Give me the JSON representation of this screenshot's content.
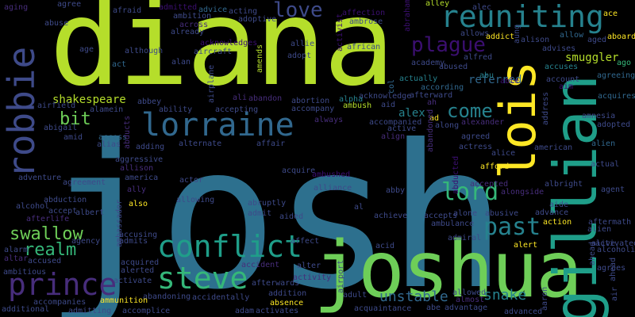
{
  "palette": [
    "#3b0f70",
    "#472d7b",
    "#3e4a89",
    "#31688e",
    "#26828e",
    "#1f9e89",
    "#35b779",
    "#6ece58",
    "#b5de2b",
    "#fde725"
  ],
  "words": [
    {
      "text": "josh",
      "color": "#2d708e"
    },
    {
      "text": "diana",
      "color": "#b5de2b"
    },
    {
      "text": "joshua",
      "color": "#6ece58"
    },
    {
      "text": "gillian",
      "color": "#1f9e89"
    },
    {
      "text": "lois",
      "color": "#fde725"
    },
    {
      "text": "reuniting",
      "color": "#26828e"
    },
    {
      "text": "robbie",
      "color": "#3e4a89"
    },
    {
      "text": "lorraine",
      "color": "#31688e"
    },
    {
      "text": "conflict",
      "color": "#1f9e89"
    },
    {
      "text": "steve",
      "color": "#35b779"
    },
    {
      "text": "prince",
      "color": "#472d7b"
    },
    {
      "text": "love",
      "color": "#3e4a89"
    },
    {
      "text": "plague",
      "color": "#3b0f70"
    },
    {
      "text": "lord",
      "color": "#35b779"
    },
    {
      "text": "past",
      "color": "#26828e"
    },
    {
      "text": "come",
      "color": "#26828e"
    },
    {
      "text": "swallow",
      "color": "#6ece58"
    },
    {
      "text": "realm",
      "color": "#35b779"
    },
    {
      "text": "bit",
      "color": "#6ece58"
    },
    {
      "text": "alex",
      "color": "#26828e"
    },
    {
      "text": "snake",
      "color": "#26828e"
    },
    {
      "text": "unstable",
      "color": "#31688e"
    },
    {
      "text": "smuggler",
      "color": "#b5de2b"
    },
    {
      "text": "shakespeare",
      "color": "#b5de2b"
    },
    {
      "text": "referred",
      "color": "#31688e"
    },
    {
      "text": "afraid",
      "color": "#3e4a89"
    },
    {
      "text": "aging",
      "color": "#472d7b"
    },
    {
      "text": "agree",
      "color": "#3e4a89"
    },
    {
      "text": "abuse",
      "color": "#3e4a89"
    },
    {
      "text": "admitted",
      "color": "#3b0f70"
    },
    {
      "text": "ambition",
      "color": "#3e4a89"
    },
    {
      "text": "advice",
      "color": "#31688e"
    },
    {
      "text": "acting",
      "color": "#3e4a89"
    },
    {
      "text": "affection",
      "color": "#3b0f70"
    },
    {
      "text": "ambrose",
      "color": "#3e4a89"
    },
    {
      "text": "abraham",
      "color": "#3b0f70"
    },
    {
      "text": "alley",
      "color": "#b5de2b"
    },
    {
      "text": "ace",
      "color": "#fde725"
    },
    {
      "text": "alec",
      "color": "#3e4a89"
    },
    {
      "text": "allows",
      "color": "#3e4a89"
    },
    {
      "text": "addict",
      "color": "#fde725"
    },
    {
      "text": "aung",
      "color": "#3e4a89"
    },
    {
      "text": "alison",
      "color": "#3e4a89"
    },
    {
      "text": "allow",
      "color": "#31688e"
    },
    {
      "text": "aged",
      "color": "#3e4a89"
    },
    {
      "text": "aboard",
      "color": "#fde725"
    },
    {
      "text": "across",
      "color": "#472d7b"
    },
    {
      "text": "adoptive",
      "color": "#3e4a89"
    },
    {
      "text": "allie",
      "color": "#3e4a89"
    },
    {
      "text": "african",
      "color": "#3e4a89"
    },
    {
      "text": "acknowledges",
      "color": "#3b0f70"
    },
    {
      "text": "aircraft",
      "color": "#3e4a89"
    },
    {
      "text": "already",
      "color": "#3e4a89"
    },
    {
      "text": "activist",
      "color": "#3b0f70"
    },
    {
      "text": "age",
      "color": "#3e4a89"
    },
    {
      "text": "although",
      "color": "#3e4a89"
    },
    {
      "text": "act",
      "color": "#31688e"
    },
    {
      "text": "alan",
      "color": "#3e4a89"
    },
    {
      "text": "adopt",
      "color": "#3e4a89"
    },
    {
      "text": "abused",
      "color": "#3e4a89"
    },
    {
      "text": "alfred",
      "color": "#3e4a89"
    },
    {
      "text": "academy",
      "color": "#3e4a89"
    },
    {
      "text": "abu",
      "color": "#26828e"
    },
    {
      "text": "advises",
      "color": "#3e4a89"
    },
    {
      "text": "accuses",
      "color": "#26828e"
    },
    {
      "text": "agreeing",
      "color": "#31688e"
    },
    {
      "text": "ago",
      "color": "#35b779"
    },
    {
      "text": "account",
      "color": "#3e4a89"
    },
    {
      "text": "able",
      "color": "#3b0f70"
    },
    {
      "text": "aim",
      "color": "#3b0f70"
    },
    {
      "text": "actually",
      "color": "#26828e"
    },
    {
      "text": "according",
      "color": "#31688e"
    },
    {
      "text": "afterward",
      "color": "#3e4a89"
    },
    {
      "text": "ah",
      "color": "#472d7b"
    },
    {
      "text": "acknowledge",
      "color": "#3e4a89"
    },
    {
      "text": "alpha",
      "color": "#26828e"
    },
    {
      "text": "aid",
      "color": "#3e4a89"
    },
    {
      "text": "ambush",
      "color": "#b5de2b"
    },
    {
      "text": "amends",
      "color": "#b5de2b"
    },
    {
      "text": "airplane",
      "color": "#3e4a89"
    },
    {
      "text": "ali",
      "color": "#472d7b"
    },
    {
      "text": "abandon",
      "color": "#472d7b"
    },
    {
      "text": "abortion",
      "color": "#3e4a89"
    },
    {
      "text": "accompany",
      "color": "#3e4a89"
    },
    {
      "text": "abbey",
      "color": "#3e4a89"
    },
    {
      "text": "ability",
      "color": "#3e4a89"
    },
    {
      "text": "accepting",
      "color": "#3e4a89"
    },
    {
      "text": "always",
      "color": "#472d7b"
    },
    {
      "text": "acquires",
      "color": "#31688e"
    },
    {
      "text": "address",
      "color": "#3e4a89"
    },
    {
      "text": "amnesia",
      "color": "#3e4a89"
    },
    {
      "text": "adopted",
      "color": "#3e4a89"
    },
    {
      "text": "alamein",
      "color": "#3e4a89"
    },
    {
      "text": "airfield",
      "color": "#3e4a89"
    },
    {
      "text": "abigail",
      "color": "#3e4a89"
    },
    {
      "text": "amid",
      "color": "#3e4a89"
    },
    {
      "text": "access",
      "color": "#31688e"
    },
    {
      "text": "alias",
      "color": "#3e4a89"
    },
    {
      "text": "abducts",
      "color": "#472d7b"
    },
    {
      "text": "adding",
      "color": "#3e4a89"
    },
    {
      "text": "alternate",
      "color": "#3e4a89"
    },
    {
      "text": "affair",
      "color": "#3e4a89"
    },
    {
      "text": "accompanied",
      "color": "#3e4a89"
    },
    {
      "text": "active",
      "color": "#3e4a89"
    },
    {
      "text": "align",
      "color": "#472d7b"
    },
    {
      "text": "along",
      "color": "#3e4a89"
    },
    {
      "text": "alexander",
      "color": "#472d7b"
    },
    {
      "text": "ad",
      "color": "#fde725"
    },
    {
      "text": "agreed",
      "color": "#3e4a89"
    },
    {
      "text": "actress",
      "color": "#3e4a89"
    },
    {
      "text": "alice",
      "color": "#3e4a89"
    },
    {
      "text": "american",
      "color": "#3e4a89"
    },
    {
      "text": "alien",
      "color": "#31688e"
    },
    {
      "text": "abandoned",
      "color": "#472d7b"
    },
    {
      "text": "aggressive",
      "color": "#3e4a89"
    },
    {
      "text": "allison",
      "color": "#472d7b"
    },
    {
      "text": "adventure",
      "color": "#3e4a89"
    },
    {
      "text": "agreement",
      "color": "#3e4a89"
    },
    {
      "text": "america",
      "color": "#3e4a89"
    },
    {
      "text": "actor",
      "color": "#3e4a89"
    },
    {
      "text": "acquire",
      "color": "#3e4a89"
    },
    {
      "text": "actual",
      "color": "#3e4a89"
    },
    {
      "text": "abducted",
      "color": "#3b0f70"
    },
    {
      "text": "afford",
      "color": "#fde725"
    },
    {
      "text": "accepted",
      "color": "#472d7b"
    },
    {
      "text": "alongside",
      "color": "#472d7b"
    },
    {
      "text": "albright",
      "color": "#3e4a89"
    },
    {
      "text": "agent",
      "color": "#3e4a89"
    },
    {
      "text": "abduction",
      "color": "#3e4a89"
    },
    {
      "text": "ally",
      "color": "#472d7b"
    },
    {
      "text": "allowing",
      "color": "#3e4a89"
    },
    {
      "text": "ambushed",
      "color": "#3b0f70"
    },
    {
      "text": "alliance",
      "color": "#3e4a89"
    },
    {
      "text": "abby",
      "color": "#3e4a89"
    },
    {
      "text": "alcohol",
      "color": "#3e4a89"
    },
    {
      "text": "accept",
      "color": "#3e4a89"
    },
    {
      "text": "afterlife",
      "color": "#472d7b"
    },
    {
      "text": "albert",
      "color": "#3e4a89"
    },
    {
      "text": "also",
      "color": "#fde725"
    },
    {
      "text": "abruptly",
      "color": "#3e4a89"
    },
    {
      "text": "admit",
      "color": "#3e4a89"
    },
    {
      "text": "aided",
      "color": "#3e4a89"
    },
    {
      "text": "al",
      "color": "#3e4a89"
    },
    {
      "text": "achieve",
      "color": "#3e4a89"
    },
    {
      "text": "accepts",
      "color": "#3e4a89"
    },
    {
      "text": "alone",
      "color": "#3e4a89"
    },
    {
      "text": "abusive",
      "color": "#3e4a89"
    },
    {
      "text": "aide",
      "color": "#3e4a89"
    },
    {
      "text": "advance",
      "color": "#3e4a89"
    },
    {
      "text": "ambulance",
      "color": "#3e4a89"
    },
    {
      "text": "action",
      "color": "#fde725"
    },
    {
      "text": "aftermath",
      "color": "#3e4a89"
    },
    {
      "text": "alien",
      "color": "#3e4a89"
    },
    {
      "text": "ambassador",
      "color": "#3e4a89"
    },
    {
      "text": "accusing",
      "color": "#3e4a89"
    },
    {
      "text": "agency",
      "color": "#3e4a89"
    },
    {
      "text": "admits",
      "color": "#3e4a89"
    },
    {
      "text": "affect",
      "color": "#3e4a89"
    },
    {
      "text": "admiral",
      "color": "#3e4a89"
    },
    {
      "text": "alive",
      "color": "#3e4a89"
    },
    {
      "text": "activated",
      "color": "#3e4a89"
    },
    {
      "text": "alcoholic",
      "color": "#3e4a89"
    },
    {
      "text": "alarm",
      "color": "#3e4a89"
    },
    {
      "text": "acid",
      "color": "#3e4a89"
    },
    {
      "text": "alert",
      "color": "#fde725"
    },
    {
      "text": "ahead",
      "color": "#3e4a89"
    },
    {
      "text": "altar",
      "color": "#472d7b"
    },
    {
      "text": "accused",
      "color": "#3e4a89"
    },
    {
      "text": "acquired",
      "color": "#3e4a89"
    },
    {
      "text": "accident",
      "color": "#472d7b"
    },
    {
      "text": "alter",
      "color": "#3e4a89"
    },
    {
      "text": "alerted",
      "color": "#3e4a89"
    },
    {
      "text": "agrees",
      "color": "#3e4a89"
    },
    {
      "text": "ambitious",
      "color": "#3e4a89"
    },
    {
      "text": "activate",
      "color": "#3e4a89"
    },
    {
      "text": "activity",
      "color": "#472d7b"
    },
    {
      "text": "airport",
      "color": "#3e4a89"
    },
    {
      "text": "afterwards",
      "color": "#3e4a89"
    },
    {
      "text": "addition",
      "color": "#3e4a89"
    },
    {
      "text": "accompanies",
      "color": "#3e4a89"
    },
    {
      "text": "abandoning",
      "color": "#3e4a89"
    },
    {
      "text": "accidentally",
      "color": "#3e4a89"
    },
    {
      "text": "absence",
      "color": "#fde725"
    },
    {
      "text": "adult",
      "color": "#3e4a89"
    },
    {
      "text": "allowed",
      "color": "#3e4a89"
    },
    {
      "text": "almost",
      "color": "#472d7b"
    },
    {
      "text": "aaron",
      "color": "#3e4a89"
    },
    {
      "text": "air",
      "color": "#3e4a89"
    },
    {
      "text": "ammunition",
      "color": "#fde725"
    },
    {
      "text": "additional",
      "color": "#3e4a89"
    },
    {
      "text": "admitting",
      "color": "#3e4a89"
    },
    {
      "text": "accomplice",
      "color": "#3e4a89"
    },
    {
      "text": "adam",
      "color": "#3e4a89"
    },
    {
      "text": "activates",
      "color": "#3e4a89"
    },
    {
      "text": "acquaintance",
      "color": "#3e4a89"
    },
    {
      "text": "abe",
      "color": "#3e4a89"
    },
    {
      "text": "advantage",
      "color": "#3e4a89"
    },
    {
      "text": "advanced",
      "color": "#3e4a89"
    },
    {
      "text": "col",
      "color": "#31688e"
    },
    {
      "text": "ahead",
      "color": "#3e4a89"
    }
  ]
}
